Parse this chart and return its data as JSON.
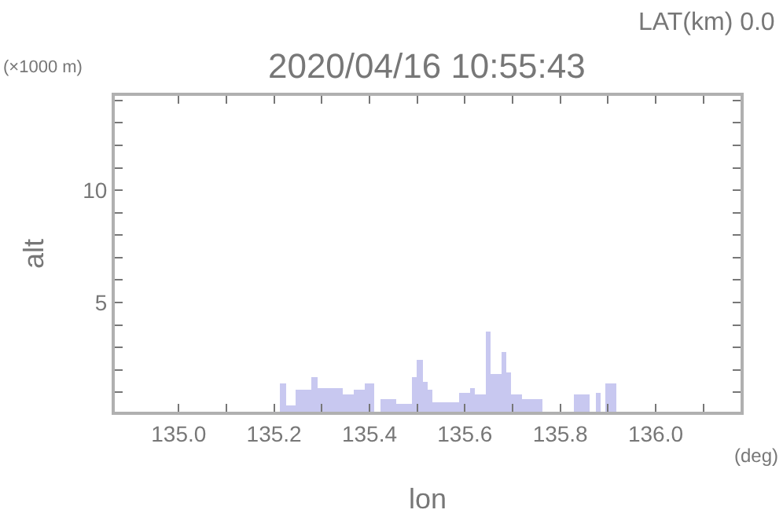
{
  "chart_data": {
    "type": "bar",
    "title": "2020/04/16 10:55:43",
    "xlabel": "lon",
    "ylabel": "alt",
    "annotations": [
      "LAT(km) 0.0",
      "(×1000 m)",
      "(deg)"
    ],
    "x": [
      135.219,
      135.23,
      135.241,
      135.252,
      135.263,
      135.274,
      135.285,
      135.296,
      135.307,
      135.318,
      135.329,
      135.34,
      135.351,
      135.362,
      135.373,
      135.384,
      135.395,
      135.406,
      135.417,
      135.428,
      135.439,
      135.45,
      135.461,
      135.472,
      135.483,
      135.494,
      135.505,
      135.516,
      135.527,
      135.538,
      135.549,
      135.56,
      135.571,
      135.582,
      135.593,
      135.604,
      135.615,
      135.626,
      135.637,
      135.648,
      135.659,
      135.67,
      135.681,
      135.692,
      135.703,
      135.714,
      135.725,
      135.736,
      135.747,
      135.758,
      135.769,
      135.78,
      135.791,
      135.802,
      135.813,
      135.824,
      135.835,
      135.846,
      135.857,
      135.868,
      135.879,
      135.89,
      135.901,
      135.912
    ],
    "values": [
      1.42,
      0.4,
      0.4,
      1.13,
      1.13,
      1.13,
      1.68,
      1.2,
      1.2,
      1.2,
      1.2,
      1.2,
      0.91,
      0.91,
      1.13,
      1.13,
      1.42,
      1.42,
      null,
      0.69,
      0.69,
      0.69,
      0.51,
      0.51,
      0.51,
      1.68,
      2.46,
      1.5,
      1.13,
      0.58,
      0.58,
      0.58,
      0.58,
      0.58,
      0.96,
      0.96,
      1.2,
      0.91,
      0.91,
      3.74,
      1.8,
      1.8,
      2.79,
      1.86,
      0.91,
      0.91,
      0.69,
      0.69,
      0.69,
      0.69,
      null,
      null,
      null,
      null,
      null,
      null,
      0.91,
      0.91,
      0.91,
      null,
      0.96,
      null,
      1.42,
      1.42
    ],
    "color": "#c8c8f0",
    "xlim": [
      134.866,
      136.178
    ],
    "xticks": [
      {
        "value": 135.0,
        "label": "135.0"
      },
      {
        "value": 135.1,
        "label": null
      },
      {
        "value": 135.2,
        "label": "135.2"
      },
      {
        "value": 135.3,
        "label": null
      },
      {
        "value": 135.4,
        "label": "135.4"
      },
      {
        "value": 135.5,
        "label": null
      },
      {
        "value": 135.6,
        "label": "135.6"
      },
      {
        "value": 135.7,
        "label": null
      },
      {
        "value": 135.8,
        "label": "135.8"
      },
      {
        "value": 135.9,
        "label": null
      },
      {
        "value": 136.0,
        "label": "136.0"
      },
      {
        "value": 136.1,
        "label": null
      }
    ],
    "ylim": [
      0.14,
      14.2
    ],
    "yticks": [
      {
        "value": 1,
        "label": null
      },
      {
        "value": 2,
        "label": null
      },
      {
        "value": 3,
        "label": null
      },
      {
        "value": 4,
        "label": null
      },
      5,
      {
        "value": 6,
        "label": null
      },
      {
        "value": 7,
        "label": null
      },
      {
        "value": 8,
        "label": null
      },
      {
        "value": 9,
        "label": null
      },
      10,
      {
        "value": 11,
        "label": null
      },
      {
        "value": 12,
        "label": null
      },
      {
        "value": 13,
        "label": null
      },
      {
        "value": 14,
        "label": null
      }
    ],
    "legend": false
  }
}
